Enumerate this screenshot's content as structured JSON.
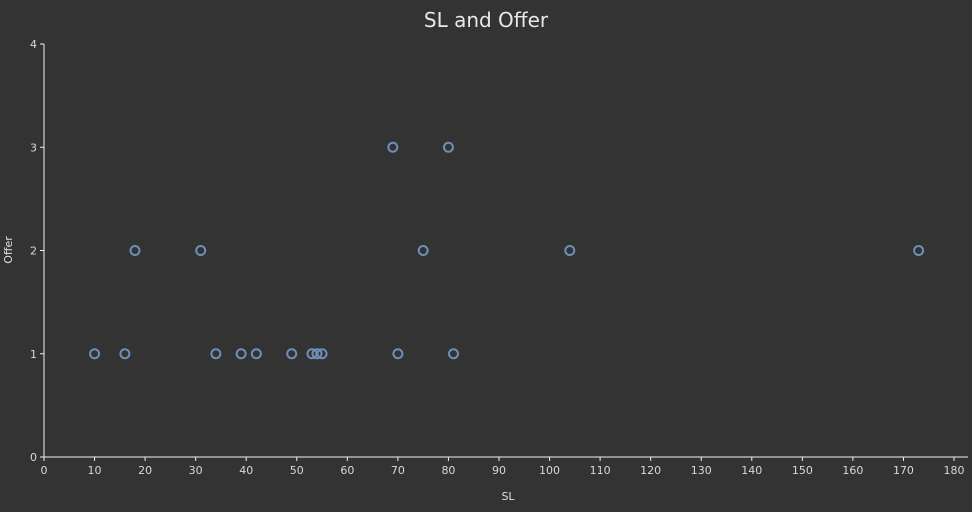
{
  "chart_data": {
    "type": "scatter",
    "title": "SL and Offer",
    "xlabel": "SL",
    "ylabel": "Offer",
    "xlim": [
      0,
      180
    ],
    "ylim": [
      0,
      4
    ],
    "xticks": [
      0,
      10,
      20,
      30,
      40,
      50,
      60,
      70,
      80,
      90,
      100,
      110,
      120,
      130,
      140,
      150,
      160,
      170,
      180
    ],
    "yticks": [
      0,
      1,
      2,
      3,
      4
    ],
    "grid": false,
    "marker_color": "#6e8fb8",
    "points": [
      {
        "x": 10,
        "y": 1
      },
      {
        "x": 16,
        "y": 1
      },
      {
        "x": 18,
        "y": 2
      },
      {
        "x": 31,
        "y": 2
      },
      {
        "x": 34,
        "y": 1
      },
      {
        "x": 39,
        "y": 1
      },
      {
        "x": 42,
        "y": 1
      },
      {
        "x": 49,
        "y": 1
      },
      {
        "x": 53,
        "y": 1
      },
      {
        "x": 54,
        "y": 1
      },
      {
        "x": 55,
        "y": 1
      },
      {
        "x": 69,
        "y": 3
      },
      {
        "x": 70,
        "y": 1
      },
      {
        "x": 75,
        "y": 2
      },
      {
        "x": 80,
        "y": 3
      },
      {
        "x": 81,
        "y": 1
      },
      {
        "x": 104,
        "y": 2
      },
      {
        "x": 173,
        "y": 2
      }
    ]
  }
}
